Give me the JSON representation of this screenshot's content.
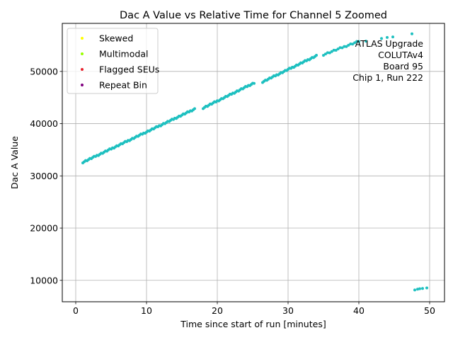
{
  "chart_data": {
    "type": "scatter",
    "title": "Dac A Value vs Relative Time for Channel 5 Zoomed",
    "xlabel": "Time since start of run [minutes]",
    "ylabel": "Dac A Value",
    "xlim": [
      -1.9,
      52.1
    ],
    "ylim": [
      5900,
      59200
    ],
    "xticks": [
      0,
      10,
      20,
      30,
      40,
      50
    ],
    "yticks": [
      10000,
      20000,
      30000,
      40000,
      50000
    ],
    "grid": true,
    "legend_position": "upper left",
    "legend": [
      {
        "label": "Skewed",
        "color": "#ffff00"
      },
      {
        "label": "Multimodal",
        "color": "#99ff00"
      },
      {
        "label": "Flagged SEUs",
        "color": "#e8222e"
      },
      {
        "label": "Repeat Bin",
        "color": "#800080"
      }
    ],
    "annotation": [
      "ATLAS Upgrade",
      "COLUTAv4",
      "Board 95",
      "Chip 1, Run 222"
    ],
    "series": [
      {
        "color": "#1ec0c0",
        "segments": [
          {
            "x": [
              1.0,
              16.8
            ],
            "y": [
              32600,
              42800
            ],
            "step": 0.2
          },
          {
            "x": [
              18.0,
              25.2
            ],
            "y": [
              43000,
              47800
            ],
            "step": 0.2
          },
          {
            "x": [
              26.4,
              34.0
            ],
            "y": [
              48000,
              53000
            ],
            "step": 0.2
          },
          {
            "x": [
              35.0,
              40.0
            ],
            "y": [
              53200,
              55800
            ],
            "step": 0.3
          }
        ],
        "points": [
          {
            "x": 41.0,
            "y": 55800
          },
          {
            "x": 43.2,
            "y": 56300
          },
          {
            "x": 44.0,
            "y": 56500
          },
          {
            "x": 44.8,
            "y": 56600
          },
          {
            "x": 47.5,
            "y": 57200
          },
          {
            "x": 47.9,
            "y": 8150
          },
          {
            "x": 48.3,
            "y": 8300
          },
          {
            "x": 48.6,
            "y": 8400
          },
          {
            "x": 49.0,
            "y": 8450
          },
          {
            "x": 49.6,
            "y": 8550
          }
        ]
      }
    ]
  }
}
